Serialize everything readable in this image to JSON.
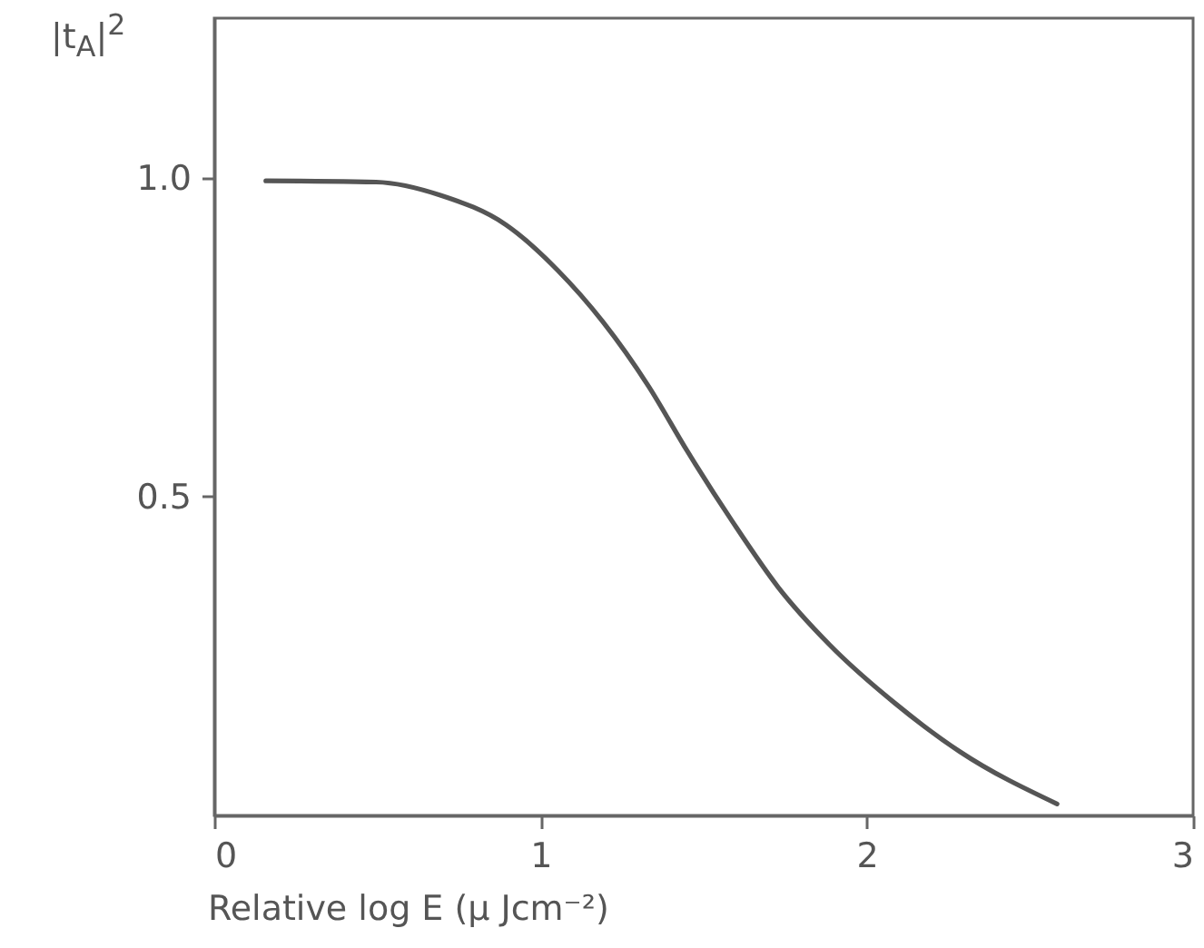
{
  "chart_data": {
    "type": "line",
    "xlabel": "Relative log E (μ Jcm⁻²)",
    "ylabel": "|t$_{A}$|$^{2}$",
    "xlim": [
      0,
      3
    ],
    "xticks": [
      0,
      1,
      2,
      3
    ],
    "ylim": [
      0,
      1.25
    ],
    "yticks": [
      0.5,
      {
        "value": 1,
        "label": "1.0"
      }
    ],
    "grid": false,
    "marker": "none",
    "line_style": "solid",
    "series": [
      {
        "color": "#555555",
        "x": [
          0.158,
          0.496,
          0.695,
          0.894,
          1.052,
          1.191,
          1.331,
          1.45,
          1.589,
          1.728,
          1.887,
          2.086,
          2.285,
          2.583
        ],
        "values": [
          0.995,
          0.993,
          0.972,
          0.926,
          0.855,
          0.774,
          0.673,
          0.571,
          0.46,
          0.358,
          0.267,
          0.176,
          0.1,
          0.018
        ]
      }
    ]
  }
}
